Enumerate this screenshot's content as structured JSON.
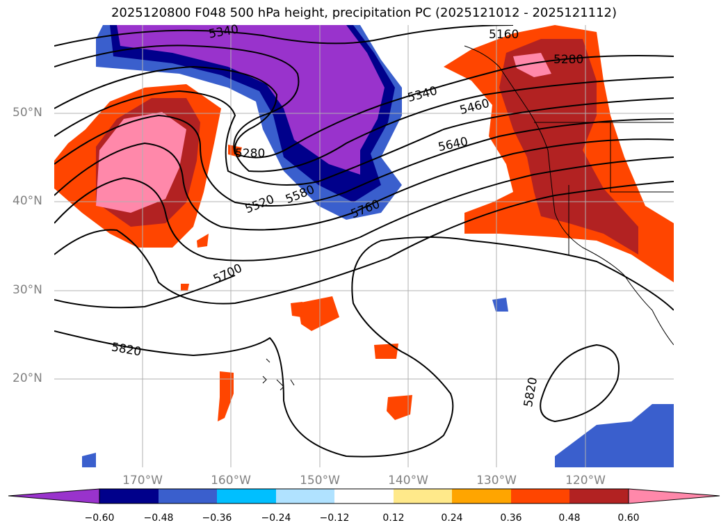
{
  "title": "2025120800 F048 500 hPa height, precipitation PC (2025121012 - 2025121112)",
  "axes": {
    "lat_labels": [
      "50°N",
      "40°N",
      "30°N",
      "20°N"
    ],
    "lon_labels": [
      "170°W",
      "160°W",
      "150°W",
      "140°W",
      "130°W",
      "120°W"
    ]
  },
  "contour_labels": [
    {
      "id": "c5340a",
      "text": "5340"
    },
    {
      "id": "c5160",
      "text": "5160"
    },
    {
      "id": "c5280a",
      "text": "5280"
    },
    {
      "id": "c5340b",
      "text": "5340"
    },
    {
      "id": "c5460",
      "text": "5460"
    },
    {
      "id": "c5640",
      "text": "5640"
    },
    {
      "id": "c5280b",
      "text": "5280"
    },
    {
      "id": "c5520",
      "text": "5520"
    },
    {
      "id": "c5580",
      "text": "5580"
    },
    {
      "id": "c5760",
      "text": "5760"
    },
    {
      "id": "c5700",
      "text": "5700"
    },
    {
      "id": "c5820a",
      "text": "5820"
    },
    {
      "id": "c5820b",
      "text": "5820"
    }
  ],
  "colorbar": {
    "ticks": [
      "−0.60",
      "−0.48",
      "−0.36",
      "−0.24",
      "−0.12",
      "0.12",
      "0.24",
      "0.36",
      "0.48",
      "0.60"
    ],
    "colors": [
      "#9933cc",
      "#00008b",
      "#3a5fcd",
      "#00bfff",
      "#b0e2ff",
      "#ffffff",
      "#ffe98a",
      "#ffa500",
      "#ff4500",
      "#b22222",
      "#ff88aa"
    ]
  }
}
